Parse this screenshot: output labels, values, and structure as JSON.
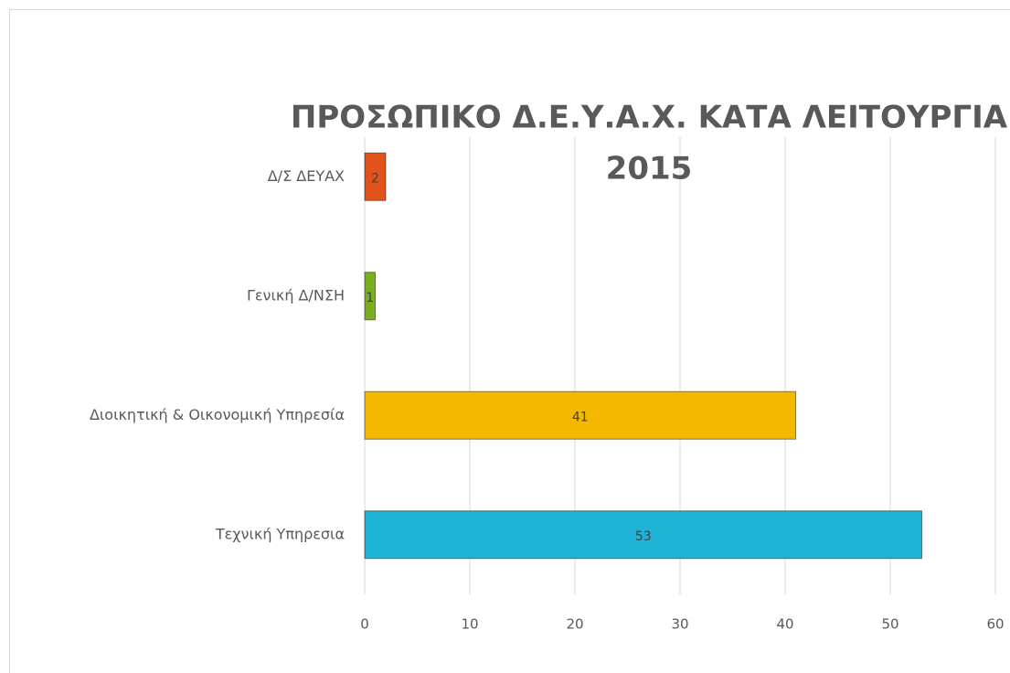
{
  "chart_data": {
    "type": "bar",
    "orientation": "horizontal",
    "title": [
      "ΠΡΟΣΩΠΙΚΟ Δ.Ε.Υ.Α.Χ.  ΚΑΤΑ ΛΕΙΤΟΥΡΓΙΑ",
      "2015"
    ],
    "categories": [
      "Δ/Σ ΔΕΥΑΧ",
      "Γενική Δ/ΝΣΗ",
      "Διοικητική & Οικονομική Υπηρεσία",
      "Τεχνική Υπηρεσια"
    ],
    "values": [
      2,
      1,
      41,
      53
    ],
    "colors": [
      "#e2521d",
      "#7aae1e",
      "#f5b800",
      "#1fb3d5"
    ],
    "xlim": [
      0,
      60
    ],
    "xticks": [
      0,
      10,
      20,
      30,
      40,
      50,
      60
    ],
    "grid": true
  }
}
